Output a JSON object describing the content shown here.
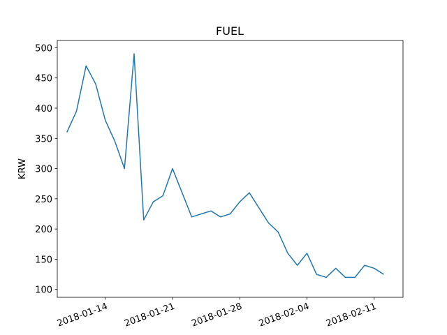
{
  "chart_data": {
    "type": "line",
    "title": "FUEL",
    "y_label": "KRW",
    "x": [
      "2018-01-10",
      "2018-01-11",
      "2018-01-12",
      "2018-01-13",
      "2018-01-14",
      "2018-01-15",
      "2018-01-16",
      "2018-01-17",
      "2018-01-18",
      "2018-01-19",
      "2018-01-20",
      "2018-01-21",
      "2018-01-22",
      "2018-01-23",
      "2018-01-24",
      "2018-01-25",
      "2018-01-26",
      "2018-01-27",
      "2018-01-28",
      "2018-01-29",
      "2018-01-30",
      "2018-01-31",
      "2018-02-01",
      "2018-02-02",
      "2018-02-03",
      "2018-02-04",
      "2018-02-05",
      "2018-02-06",
      "2018-02-07",
      "2018-02-08",
      "2018-02-09",
      "2018-02-10",
      "2018-02-11",
      "2018-02-12"
    ],
    "series": [
      {
        "name": "FUEL",
        "color": "#1f77b4",
        "values": [
          360,
          395,
          470,
          440,
          380,
          345,
          300,
          490,
          215,
          245,
          255,
          300,
          260,
          220,
          225,
          230,
          220,
          225,
          245,
          260,
          235,
          210,
          195,
          160,
          140,
          160,
          125,
          120,
          135,
          120,
          120,
          140,
          135,
          125
        ]
      }
    ],
    "xlim": [
      "2018-01-09",
      "2018-02-14"
    ],
    "xticks": [
      "2018-01-14",
      "2018-01-21",
      "2018-01-28",
      "2018-02-04",
      "2018-02-11"
    ],
    "ylim": [
      87,
      512
    ],
    "yticks": [
      100,
      150,
      200,
      250,
      300,
      350,
      400,
      450,
      500
    ]
  }
}
